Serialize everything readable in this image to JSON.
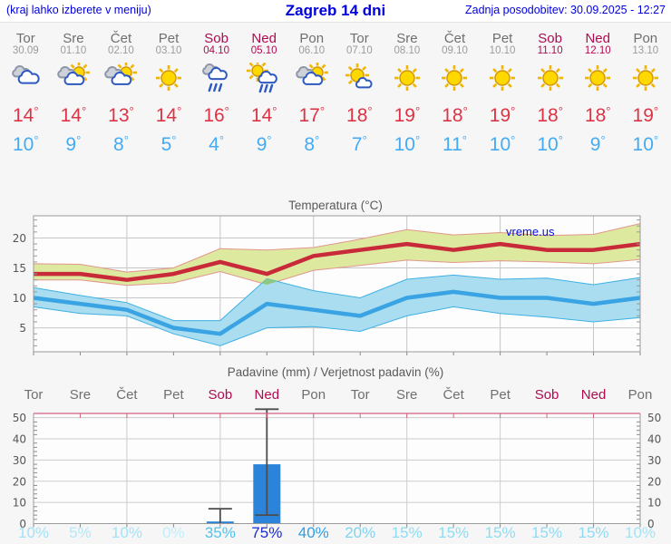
{
  "header": {
    "left_note": "(kraj lahko izberete v meniju)",
    "title": "Zagreb 14 dni",
    "updated": "Zadnja posodobitev: 30.09.2025 - 12:27"
  },
  "units": {
    "degree": "°"
  },
  "colors": {
    "header_text": "#0000dd",
    "weekday": "#6f6f6f",
    "weekend": "#b00b50",
    "tmax_text": "#dd3344",
    "tmin_text": "#44abf3",
    "page_bg": "#f6f6f6",
    "plot_bg": "#fdfdfd"
  },
  "days": [
    {
      "name": "Tor",
      "date": "30.09",
      "weekend": false,
      "icon": "cloudy",
      "tmax": "14",
      "tmin": "10"
    },
    {
      "name": "Sre",
      "date": "01.10",
      "weekend": false,
      "icon": "partly-cloudy",
      "tmax": "14",
      "tmin": "9"
    },
    {
      "name": "Čet",
      "date": "02.10",
      "weekend": false,
      "icon": "partly-cloudy",
      "tmax": "13",
      "tmin": "8"
    },
    {
      "name": "Pet",
      "date": "03.10",
      "weekend": false,
      "icon": "sunny",
      "tmax": "14",
      "tmin": "5"
    },
    {
      "name": "Sob",
      "date": "04.10",
      "weekend": true,
      "icon": "rain",
      "tmax": "16",
      "tmin": "4"
    },
    {
      "name": "Ned",
      "date": "05.10",
      "weekend": true,
      "icon": "sun-rain",
      "tmax": "14",
      "tmin": "9"
    },
    {
      "name": "Pon",
      "date": "06.10",
      "weekend": false,
      "icon": "partly-cloudy",
      "tmax": "17",
      "tmin": "8"
    },
    {
      "name": "Tor",
      "date": "07.10",
      "weekend": false,
      "icon": "mostly-sunny",
      "tmax": "18",
      "tmin": "7"
    },
    {
      "name": "Sre",
      "date": "08.10",
      "weekend": false,
      "icon": "sunny",
      "tmax": "19",
      "tmin": "10"
    },
    {
      "name": "Čet",
      "date": "09.10",
      "weekend": false,
      "icon": "sunny",
      "tmax": "18",
      "tmin": "11"
    },
    {
      "name": "Pet",
      "date": "10.10",
      "weekend": false,
      "icon": "sunny",
      "tmax": "19",
      "tmin": "10"
    },
    {
      "name": "Sob",
      "date": "11.10",
      "weekend": true,
      "icon": "sunny",
      "tmax": "18",
      "tmin": "10"
    },
    {
      "name": "Ned",
      "date": "12.10",
      "weekend": true,
      "icon": "sunny",
      "tmax": "18",
      "tmin": "9"
    },
    {
      "name": "Pon",
      "date": "13.10",
      "weekend": false,
      "icon": "sunny",
      "tmax": "19",
      "tmin": "10"
    }
  ],
  "chart_data": [
    {
      "type": "area",
      "title": "Temperatura (°C)",
      "watermark": "vreme.us",
      "x_labels": [
        "Tor",
        "Sre",
        "Čet",
        "Pet",
        "Sob",
        "Ned",
        "Pon",
        "Tor",
        "Sre",
        "Čet",
        "Pet",
        "Sob",
        "Ned",
        "Pon"
      ],
      "ylim": [
        1,
        23.7
      ],
      "yticks": [
        5,
        10,
        15,
        20
      ],
      "grid_x_indices": [
        2,
        4,
        6,
        8,
        10,
        12
      ],
      "series": [
        {
          "name": "tmax",
          "color": "#c92a3a",
          "values": [
            14,
            14,
            13,
            14,
            16,
            14,
            17,
            18,
            19,
            18,
            19,
            18,
            18,
            19
          ]
        },
        {
          "name": "tmin",
          "color": "#39a3e4",
          "values": [
            10,
            9,
            8,
            5,
            4,
            9,
            8,
            7,
            10,
            11,
            10,
            10,
            9,
            10
          ]
        },
        {
          "name": "tmax_band_upper",
          "values": [
            15.7,
            15.6,
            14.3,
            15,
            18.2,
            18,
            18.4,
            19.8,
            21.4,
            20.5,
            20.9,
            20.4,
            20.6,
            22.4
          ]
        },
        {
          "name": "tmax_band_lower",
          "values": [
            13,
            13,
            12.1,
            12.5,
            14.4,
            12.2,
            14.6,
            15.4,
            16.3,
            15.9,
            16.2,
            16,
            15.7,
            16.4
          ]
        },
        {
          "name": "tmin_band_upper",
          "values": [
            11.7,
            10.4,
            9.2,
            6.2,
            6.2,
            13.2,
            11.2,
            10,
            13.1,
            13.8,
            13.1,
            13.3,
            12.2,
            13.4
          ]
        },
        {
          "name": "tmin_band_lower",
          "values": [
            8.5,
            7.4,
            7,
            4,
            2,
            5,
            5.2,
            4.4,
            7,
            8.5,
            7.4,
            6.8,
            6,
            6.7
          ]
        }
      ],
      "band_colors": {
        "max_fill": "#dce99e",
        "max_edge": "#e1968d",
        "min_fill": "#a9ddef",
        "min_edge": "#3fb0e4",
        "overlap": "#8cc87d"
      }
    },
    {
      "type": "bar",
      "title": "Padavine (mm) / Verjetnost padavin (%)",
      "categories": [
        "Tor",
        "Sre",
        "Čet",
        "Pet",
        "Sob",
        "Ned",
        "Pon",
        "Tor",
        "Sre",
        "Čet",
        "Pet",
        "Sob",
        "Ned",
        "Pon"
      ],
      "weekend_indices": [
        4,
        5,
        11,
        12
      ],
      "values": [
        0,
        0,
        0,
        0,
        1,
        28,
        0,
        0,
        0,
        0,
        0,
        0,
        0,
        0
      ],
      "whiskers": [
        null,
        null,
        null,
        null,
        [
          0,
          7
        ],
        [
          4,
          54
        ],
        null,
        null,
        null,
        null,
        null,
        null,
        null,
        null
      ],
      "ylim": [
        0,
        52
      ],
      "yticks": [
        0,
        10,
        20,
        30,
        40,
        50
      ],
      "grid_x_indices": [
        2,
        4,
        6,
        8,
        10,
        12
      ],
      "bar_color": "#2b84da",
      "whisker_color": "#4d4d4d",
      "top_axis_color": "#d4617f",
      "probabilities": [
        {
          "label": "10%",
          "color": "#a2e3f6"
        },
        {
          "label": "5%",
          "color": "#b2e8f8"
        },
        {
          "label": "10%",
          "color": "#a2e3f6"
        },
        {
          "label": "0%",
          "color": "#c0eefa"
        },
        {
          "label": "35%",
          "color": "#4fc3ee"
        },
        {
          "label": "75%",
          "color": "#1b2dcf"
        },
        {
          "label": "40%",
          "color": "#2d9fe6"
        },
        {
          "label": "20%",
          "color": "#7cd4f1"
        },
        {
          "label": "15%",
          "color": "#8edcf4"
        },
        {
          "label": "15%",
          "color": "#8edcf4"
        },
        {
          "label": "15%",
          "color": "#8edcf4"
        },
        {
          "label": "15%",
          "color": "#8edcf4"
        },
        {
          "label": "15%",
          "color": "#8edcf4"
        },
        {
          "label": "10%",
          "color": "#a2e3f6"
        }
      ]
    }
  ]
}
